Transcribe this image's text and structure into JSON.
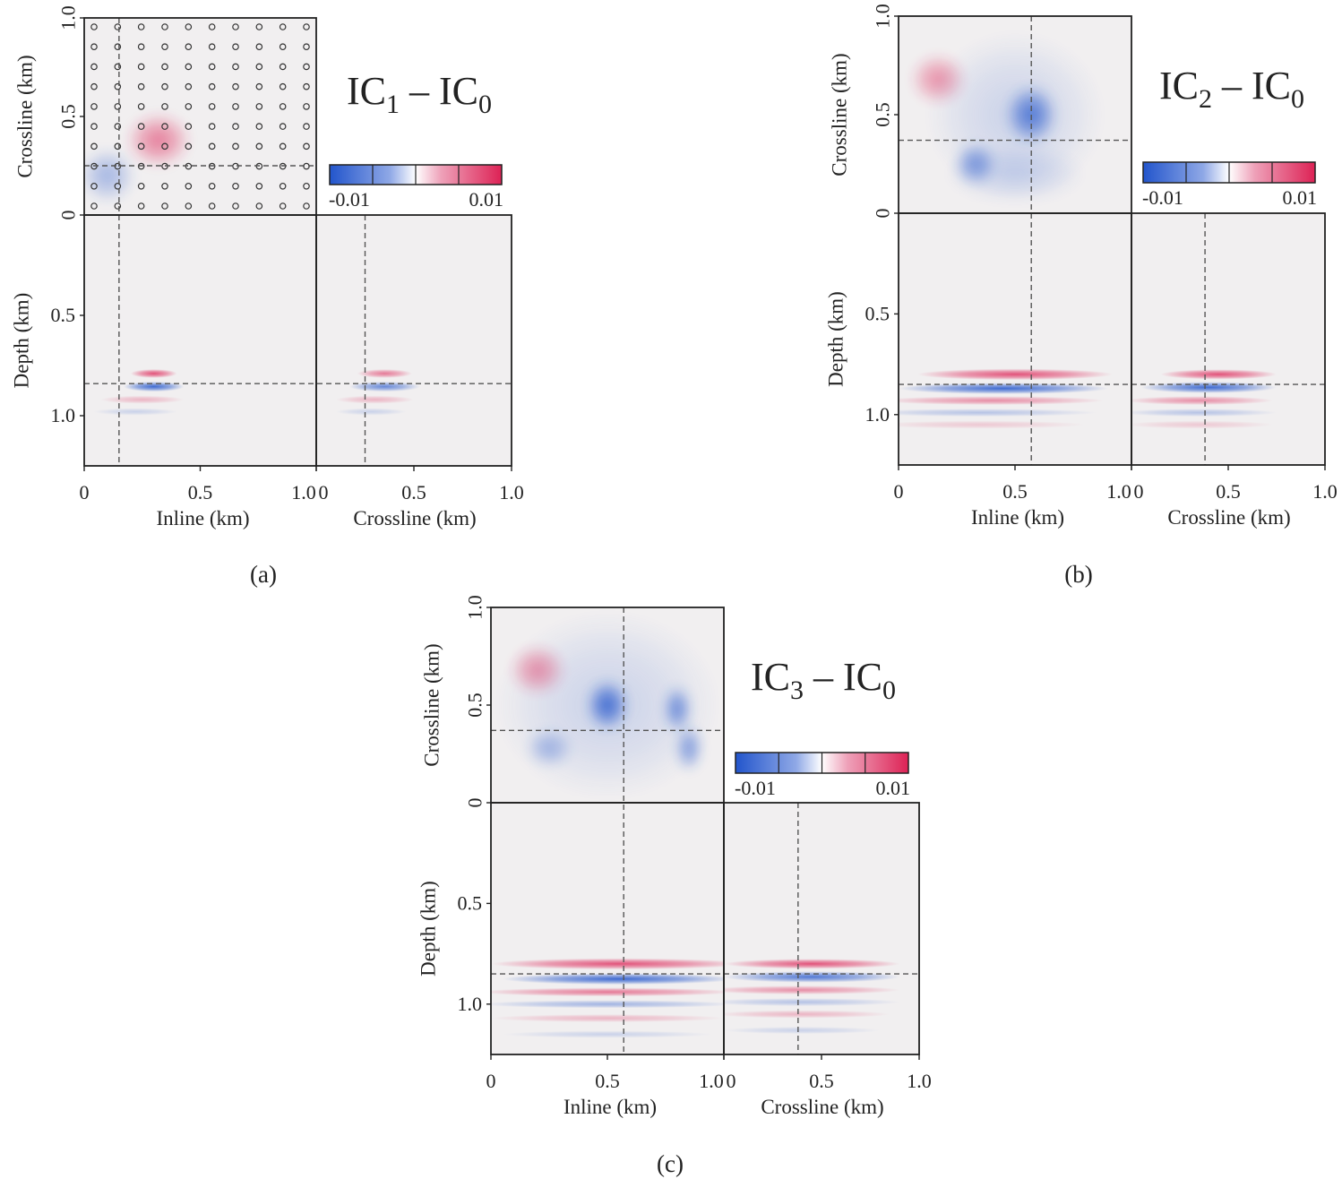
{
  "colors": {
    "blue": "#2255cc",
    "red": "#dd2255",
    "background": "#f1eff0",
    "frame": "#222222",
    "guide": "#555555"
  },
  "chart_data": [
    {
      "type": "heatmap",
      "panel_label": "(a)",
      "title_parts": [
        "IC",
        "1",
        " – IC",
        "0"
      ],
      "colorbar": {
        "min": -0.01,
        "max": 0.01,
        "min_label": "-0.01",
        "max_label": "0.01"
      },
      "top_view": {
        "xlabel": "Inline (km)",
        "ylabel": "Crossline (km)",
        "yticks": [
          "0",
          "0.5",
          "1.0"
        ],
        "xlim": [
          0,
          1.0
        ],
        "ylim": [
          0,
          1.0
        ],
        "guide_x": 0.15,
        "guide_y": 0.25,
        "receiver_grid": true,
        "grid_count": 10
      },
      "depth_inline": {
        "xlabel": "Inline (km)",
        "ylabel": "Depth (km)",
        "xticks": [
          "0",
          "0.5",
          "1.0"
        ],
        "yticks": [
          "0.5",
          "1.0"
        ],
        "xlim": [
          0,
          1.0
        ],
        "ylim": [
          0,
          1.25
        ],
        "guide_x": 0.15
      },
      "depth_crossline": {
        "xlabel": "Crossline (km)",
        "xticks": [
          "0",
          "0.5",
          "1.0"
        ],
        "xlim": [
          0,
          1.0
        ],
        "guide_x": 0.25
      },
      "guide_depth": 0.84,
      "top_anomalies": [
        {
          "x": 0.32,
          "y": 0.38,
          "rx": 0.14,
          "ry": 0.14,
          "value": 0.006
        },
        {
          "x": 0.1,
          "y": 0.2,
          "rx": 0.12,
          "ry": 0.14,
          "value": -0.004
        }
      ],
      "inline_anomalies": [
        {
          "x": 0.3,
          "z": 0.79,
          "rx": 0.1,
          "rz": 0.022,
          "value": 0.008
        },
        {
          "x": 0.3,
          "z": 0.855,
          "rx": 0.13,
          "rz": 0.025,
          "value": -0.009
        },
        {
          "x": 0.25,
          "z": 0.92,
          "rx": 0.18,
          "rz": 0.02,
          "value": 0.003
        },
        {
          "x": 0.22,
          "z": 0.98,
          "rx": 0.18,
          "rz": 0.018,
          "value": -0.002
        }
      ],
      "crossline_anomalies": [
        {
          "x": 0.35,
          "z": 0.79,
          "rx": 0.14,
          "rz": 0.022,
          "value": 0.006
        },
        {
          "x": 0.35,
          "z": 0.855,
          "rx": 0.18,
          "rz": 0.025,
          "value": -0.007
        },
        {
          "x": 0.3,
          "z": 0.92,
          "rx": 0.2,
          "rz": 0.02,
          "value": 0.003
        },
        {
          "x": 0.28,
          "z": 0.98,
          "rx": 0.18,
          "rz": 0.018,
          "value": -0.002
        }
      ]
    },
    {
      "type": "heatmap",
      "panel_label": "(b)",
      "title_parts": [
        "IC",
        "2",
        " – IC",
        "0"
      ],
      "colorbar": {
        "min": -0.01,
        "max": 0.01,
        "min_label": "-0.01",
        "max_label": "0.01"
      },
      "top_view": {
        "xlabel": "Inline (km)",
        "ylabel": "Crossline (km)",
        "yticks": [
          "0",
          "0.5",
          "1.0"
        ],
        "xlim": [
          0,
          1.0
        ],
        "ylim": [
          0,
          1.0
        ],
        "guide_x": 0.57,
        "guide_y": 0.37,
        "receiver_grid": false
      },
      "depth_inline": {
        "xlabel": "Inline (km)",
        "ylabel": "Depth (km)",
        "xticks": [
          "0",
          "0.5",
          "1.0"
        ],
        "yticks": [
          "0.5",
          "1.0"
        ],
        "xlim": [
          0,
          1.0
        ],
        "ylim": [
          0,
          1.25
        ],
        "guide_x": 0.57
      },
      "depth_crossline": {
        "xlabel": "Crossline (km)",
        "xticks": [
          "0",
          "0.5",
          "1.0"
        ],
        "xlim": [
          0,
          1.0
        ],
        "guide_x": 0.38
      },
      "guide_depth": 0.85,
      "top_anomalies": [
        {
          "x": 0.17,
          "y": 0.68,
          "rx": 0.12,
          "ry": 0.13,
          "value": 0.005
        },
        {
          "x": 0.5,
          "y": 0.5,
          "rx": 0.38,
          "ry": 0.42,
          "value": -0.002
        },
        {
          "x": 0.57,
          "y": 0.5,
          "rx": 0.11,
          "ry": 0.15,
          "value": -0.008
        },
        {
          "x": 0.33,
          "y": 0.25,
          "rx": 0.09,
          "ry": 0.11,
          "value": -0.006
        },
        {
          "x": 0.5,
          "y": 0.2,
          "rx": 0.3,
          "ry": 0.15,
          "value": -0.002
        }
      ],
      "inline_anomalies": [
        {
          "x": 0.5,
          "z": 0.8,
          "rx": 0.42,
          "rz": 0.028,
          "value": 0.008
        },
        {
          "x": 0.45,
          "z": 0.87,
          "rx": 0.45,
          "rz": 0.028,
          "value": -0.009
        },
        {
          "x": 0.4,
          "z": 0.93,
          "rx": 0.48,
          "rz": 0.022,
          "value": 0.005
        },
        {
          "x": 0.35,
          "z": 0.99,
          "rx": 0.5,
          "rz": 0.02,
          "value": -0.003
        },
        {
          "x": 0.35,
          "z": 1.05,
          "rx": 0.45,
          "rz": 0.02,
          "value": 0.002
        }
      ],
      "crossline_anomalies": [
        {
          "x": 0.45,
          "z": 0.8,
          "rx": 0.3,
          "rz": 0.025,
          "value": 0.008
        },
        {
          "x": 0.4,
          "z": 0.865,
          "rx": 0.35,
          "rz": 0.028,
          "value": -0.009
        },
        {
          "x": 0.35,
          "z": 0.93,
          "rx": 0.38,
          "rz": 0.022,
          "value": 0.005
        },
        {
          "x": 0.35,
          "z": 0.99,
          "rx": 0.4,
          "rz": 0.02,
          "value": -0.003
        },
        {
          "x": 0.35,
          "z": 1.05,
          "rx": 0.38,
          "rz": 0.02,
          "value": 0.002
        }
      ]
    },
    {
      "type": "heatmap",
      "panel_label": "(c)",
      "title_parts": [
        "IC",
        "3",
        " – IC",
        "0"
      ],
      "colorbar": {
        "min": -0.01,
        "max": 0.01,
        "min_label": "-0.01",
        "max_label": "0.01"
      },
      "top_view": {
        "xlabel": "Inline (km)",
        "ylabel": "Crossline (km)",
        "yticks": [
          "0",
          "0.5",
          "1.0"
        ],
        "xlim": [
          0,
          1.0
        ],
        "ylim": [
          0,
          1.0
        ],
        "guide_x": 0.57,
        "guide_y": 0.37,
        "receiver_grid": false
      },
      "depth_inline": {
        "xlabel": "Inline (km)",
        "ylabel": "Depth (km)",
        "xticks": [
          "0",
          "0.5",
          "1.0"
        ],
        "yticks": [
          "0.5",
          "1.0"
        ],
        "xlim": [
          0,
          1.0
        ],
        "ylim": [
          0,
          1.25
        ],
        "guide_x": 0.57
      },
      "depth_crossline": {
        "xlabel": "Crossline (km)",
        "xticks": [
          "0",
          "0.5",
          "1.0"
        ],
        "xlim": [
          0,
          1.0
        ],
        "guide_x": 0.38
      },
      "guide_depth": 0.85,
      "top_anomalies": [
        {
          "x": 0.5,
          "y": 0.5,
          "rx": 0.48,
          "ry": 0.48,
          "value": -0.002
        },
        {
          "x": 0.2,
          "y": 0.68,
          "rx": 0.12,
          "ry": 0.13,
          "value": 0.005
        },
        {
          "x": 0.5,
          "y": 0.5,
          "rx": 0.09,
          "ry": 0.13,
          "value": -0.009
        },
        {
          "x": 0.8,
          "y": 0.48,
          "rx": 0.06,
          "ry": 0.12,
          "value": -0.007
        },
        {
          "x": 0.85,
          "y": 0.28,
          "rx": 0.06,
          "ry": 0.12,
          "value": -0.006
        },
        {
          "x": 0.25,
          "y": 0.28,
          "rx": 0.1,
          "ry": 0.1,
          "value": -0.004
        }
      ],
      "inline_anomalies": [
        {
          "x": 0.55,
          "z": 0.8,
          "rx": 0.55,
          "rz": 0.028,
          "value": 0.008
        },
        {
          "x": 0.55,
          "z": 0.875,
          "rx": 0.5,
          "rz": 0.028,
          "value": -0.009
        },
        {
          "x": 0.5,
          "z": 0.94,
          "rx": 0.55,
          "rz": 0.022,
          "value": 0.006
        },
        {
          "x": 0.5,
          "z": 1.0,
          "rx": 0.55,
          "rz": 0.02,
          "value": -0.004
        },
        {
          "x": 0.5,
          "z": 1.07,
          "rx": 0.5,
          "rz": 0.02,
          "value": 0.003
        },
        {
          "x": 0.5,
          "z": 1.15,
          "rx": 0.45,
          "rz": 0.018,
          "value": -0.002
        }
      ],
      "crossline_anomalies": [
        {
          "x": 0.45,
          "z": 0.8,
          "rx": 0.45,
          "rz": 0.025,
          "value": 0.008
        },
        {
          "x": 0.45,
          "z": 0.865,
          "rx": 0.45,
          "rz": 0.028,
          "value": -0.008
        },
        {
          "x": 0.4,
          "z": 0.93,
          "rx": 0.5,
          "rz": 0.022,
          "value": 0.005
        },
        {
          "x": 0.4,
          "z": 0.99,
          "rx": 0.5,
          "rz": 0.02,
          "value": -0.003
        },
        {
          "x": 0.4,
          "z": 1.05,
          "rx": 0.45,
          "rz": 0.02,
          "value": 0.003
        },
        {
          "x": 0.4,
          "z": 1.13,
          "rx": 0.4,
          "rz": 0.018,
          "value": -0.002
        }
      ]
    }
  ]
}
